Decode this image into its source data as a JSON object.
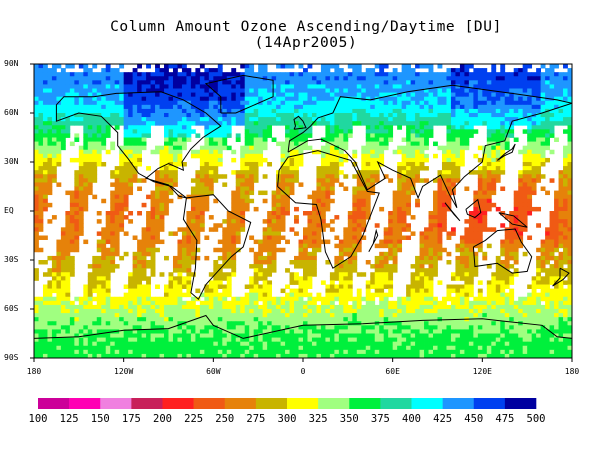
{
  "title": {
    "line1": "Column Amount Ozone Ascending/Daytime [DU]",
    "line2": "(14Apr2005)"
  },
  "lat_labels": [
    "90N",
    "60N",
    "30N",
    "EQ",
    "30S",
    "60S",
    "90S"
  ],
  "lon_labels": [
    "180",
    "120W",
    "60W",
    "0",
    "60E",
    "120E",
    "180"
  ],
  "colorbar": {
    "labels": [
      "100",
      "125",
      "150",
      "175",
      "200",
      "225",
      "250",
      "275",
      "300",
      "325",
      "350",
      "375",
      "400",
      "425",
      "450",
      "475",
      "500"
    ],
    "colors": [
      "#cc0099",
      "#ff00b4",
      "#f080e0",
      "#c8205a",
      "#ff2020",
      "#f05a14",
      "#e6820a",
      "#c8b400",
      "#ffff00",
      "#a0ff80",
      "#00f03c",
      "#20d8a0",
      "#00ffff",
      "#1e96ff",
      "#0040f0",
      "#0000a0"
    ]
  },
  "chart_data": {
    "type": "heatmap",
    "title": "Column Amount Ozone Ascending/Daytime [DU]",
    "subtitle": "(14Apr2005)",
    "x_axis": {
      "ticks": [
        "180",
        "120W",
        "60W",
        "0",
        "60E",
        "120E",
        "180"
      ],
      "range": [
        -180,
        180
      ]
    },
    "y_axis": {
      "ticks": [
        "90N",
        "60N",
        "30N",
        "EQ",
        "30S",
        "60S",
        "90S"
      ],
      "range": [
        -90,
        90
      ]
    },
    "color_scale": {
      "bins": [
        100,
        125,
        150,
        175,
        200,
        225,
        250,
        275,
        300,
        325,
        350,
        375,
        400,
        425,
        450,
        475,
        500
      ],
      "colors": [
        "#cc0099",
        "#ff00b4",
        "#f080e0",
        "#c8205a",
        "#ff2020",
        "#f05a14",
        "#e6820a",
        "#c8b400",
        "#ffff00",
        "#a0ff80",
        "#00f03c",
        "#20d8a0",
        "#00ffff",
        "#1e96ff",
        "#0040f0",
        "#0000a0"
      ]
    },
    "zonal_pattern_du": [
      {
        "lat": 80,
        "value": 440
      },
      {
        "lat": 65,
        "value": 420
      },
      {
        "lat": 50,
        "value": 375
      },
      {
        "lat": 35,
        "value": 325
      },
      {
        "lat": 20,
        "value": 275
      },
      {
        "lat": 0,
        "value": 250
      },
      {
        "lat": -20,
        "value": 262
      },
      {
        "lat": -35,
        "value": 285
      },
      {
        "lat": -50,
        "value": 310
      },
      {
        "lat": -60,
        "value": 330
      },
      {
        "lat": -70,
        "value": 345
      },
      {
        "lat": -80,
        "value": 360
      }
    ],
    "grid": false
  }
}
